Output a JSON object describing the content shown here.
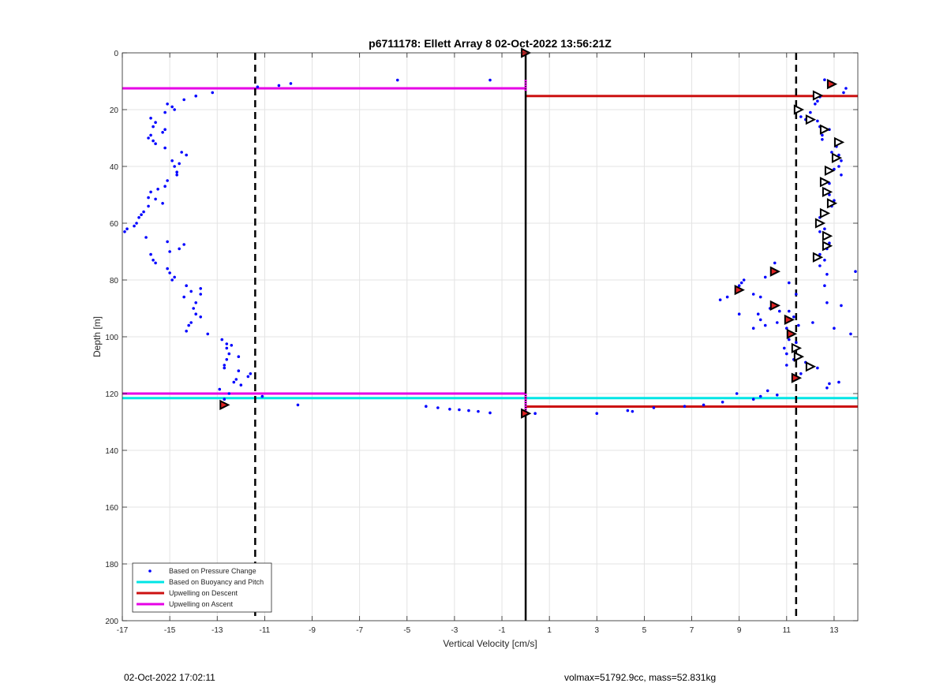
{
  "chart_data": {
    "type": "scatter",
    "title": "p6711178: Ellett Array 8 02-Oct-2022 13:56:21Z",
    "xlabel": "Vertical Velocity [cm/s]",
    "ylabel": "Depth [m]",
    "xlim": [
      -17,
      14
    ],
    "ylim": [
      0,
      200
    ],
    "y_reversed": true,
    "grid": true,
    "x_ticks": [
      -17,
      -15,
      -13,
      -11,
      -9,
      -7,
      -5,
      -3,
      -1,
      1,
      3,
      5,
      7,
      9,
      11,
      13
    ],
    "x_tick_labels": [
      "-17",
      "-15",
      "-13",
      "-11",
      "-9",
      "-7",
      "-5",
      "-3",
      "-1",
      "1",
      "3",
      "5",
      "7",
      "9",
      "11",
      "13"
    ],
    "y_ticks": [
      0,
      20,
      40,
      60,
      80,
      100,
      120,
      140,
      160,
      180,
      200
    ],
    "y_tick_labels": [
      "0",
      "20",
      "40",
      "60",
      "80",
      "100",
      "120",
      "140",
      "160",
      "180",
      "200"
    ],
    "legend_position": "bottom-left",
    "legend": [
      {
        "label": "Based on Pressure Change",
        "kind": "dot",
        "color": "#0000ff"
      },
      {
        "label": "Based on Buoyancy and Pitch",
        "kind": "line",
        "color": "#00e5e5"
      },
      {
        "label": "Upwelling on Descent",
        "kind": "line",
        "color": "#cc1111"
      },
      {
        "label": "Upwelling on Ascent",
        "kind": "line",
        "color": "#e600e6"
      }
    ],
    "colors": {
      "pressure": "#0000ff",
      "buoyancy": "#00e5e5",
      "descent": "#cc1111",
      "ascent": "#e600e6",
      "zero_line": "#000000",
      "dashed": "#000000",
      "marker_fill": "#dd2222"
    },
    "vertical_lines": [
      {
        "x": 0,
        "style": "solid"
      },
      {
        "x": -11.4,
        "style": "dashed"
      },
      {
        "x": 11.4,
        "style": "dashed"
      }
    ],
    "horizontal_segments": [
      {
        "series": "ascent",
        "y": 12.5,
        "x0": -17,
        "x1": 0
      },
      {
        "series": "descent",
        "y": 15.2,
        "x0": 0,
        "x1": 14
      },
      {
        "series": "ascent",
        "y": 120.0,
        "x0": -17,
        "x1": 0
      },
      {
        "series": "buoyancy",
        "y": 121.6,
        "x0": -17,
        "x1": 14
      },
      {
        "series": "descent",
        "y": 124.6,
        "x0": 0,
        "x1": 14
      }
    ],
    "ascent_bar": {
      "x": 0,
      "y0": 9.5,
      "y1": 13.5
    },
    "ascent_bar_bottom": {
      "x": 0,
      "y0": 120.0,
      "y1": 126.5
    },
    "pressure_points": [
      [
        -15.1,
        18
      ],
      [
        -14.9,
        19
      ],
      [
        -15.2,
        21
      ],
      [
        -14.8,
        20
      ],
      [
        -14.4,
        16.5
      ],
      [
        -13.9,
        15.2
      ],
      [
        -13.2,
        14
      ],
      [
        -15.8,
        23
      ],
      [
        -15.6,
        24.5
      ],
      [
        -15.7,
        26
      ],
      [
        -15.2,
        27
      ],
      [
        -15.3,
        28
      ],
      [
        -15.8,
        29
      ],
      [
        -15.9,
        30
      ],
      [
        -15.7,
        31
      ],
      [
        -15.6,
        32
      ],
      [
        -15.2,
        33.5
      ],
      [
        -14.5,
        35
      ],
      [
        -14.3,
        36
      ],
      [
        -14.9,
        38
      ],
      [
        -14.6,
        39
      ],
      [
        -14.8,
        40
      ],
      [
        -14.7,
        42
      ],
      [
        -14.7,
        43
      ],
      [
        -15.1,
        45
      ],
      [
        -15.2,
        47
      ],
      [
        -15.5,
        48
      ],
      [
        -15.8,
        49
      ],
      [
        -15.9,
        51
      ],
      [
        -15.6,
        51.5
      ],
      [
        -15.3,
        53
      ],
      [
        -15.9,
        54
      ],
      [
        -16.1,
        56
      ],
      [
        -16.2,
        57
      ],
      [
        -16.3,
        58
      ],
      [
        -16.4,
        60
      ],
      [
        -16.5,
        61
      ],
      [
        -16.8,
        62
      ],
      [
        -16.9,
        63
      ],
      [
        -16.0,
        65
      ],
      [
        -15.1,
        66.5
      ],
      [
        -14.4,
        67.5
      ],
      [
        -14.6,
        69
      ],
      [
        -15.0,
        70
      ],
      [
        -15.8,
        71
      ],
      [
        -15.7,
        73
      ],
      [
        -15.6,
        74
      ],
      [
        -15.1,
        76
      ],
      [
        -15.0,
        77.5
      ],
      [
        -14.8,
        79
      ],
      [
        -14.9,
        80
      ],
      [
        -14.3,
        82
      ],
      [
        -14.1,
        84
      ],
      [
        -13.7,
        83
      ],
      [
        -13.7,
        85
      ],
      [
        -14.4,
        86
      ],
      [
        -13.9,
        88
      ],
      [
        -14.0,
        90
      ],
      [
        -13.9,
        92
      ],
      [
        -13.7,
        93
      ],
      [
        -14.1,
        95
      ],
      [
        -14.2,
        96
      ],
      [
        -14.3,
        98
      ],
      [
        -13.4,
        99
      ],
      [
        -12.8,
        101
      ],
      [
        -12.6,
        102.5
      ],
      [
        -12.4,
        103
      ],
      [
        -12.6,
        104
      ],
      [
        -12.5,
        106
      ],
      [
        -12.1,
        107
      ],
      [
        -12.6,
        108
      ],
      [
        -12.7,
        110
      ],
      [
        -12.7,
        111
      ],
      [
        -12.1,
        112
      ],
      [
        -11.6,
        113
      ],
      [
        -11.7,
        114
      ],
      [
        -12.2,
        115
      ],
      [
        -12.3,
        116
      ],
      [
        -12.0,
        117
      ],
      [
        -12.9,
        118.5
      ],
      [
        -12.5,
        120
      ],
      [
        -12.7,
        122
      ],
      [
        -11.1,
        121
      ],
      [
        -9.6,
        124
      ],
      [
        -11.3,
        12
      ],
      [
        -10.4,
        11.5
      ],
      [
        -9.9,
        10.8
      ],
      [
        -5.4,
        9.6
      ],
      [
        -1.5,
        9.6
      ],
      [
        -4.2,
        124.5
      ],
      [
        -3.7,
        125
      ],
      [
        -3.2,
        125.5
      ],
      [
        -2.8,
        125.7
      ],
      [
        -2.4,
        126
      ],
      [
        -2.0,
        126.3
      ],
      [
        -1.5,
        126.8
      ],
      [
        0.4,
        127
      ],
      [
        3.0,
        127
      ],
      [
        4.3,
        126
      ],
      [
        4.5,
        126.3
      ],
      [
        5.4,
        125
      ],
      [
        6.7,
        124.5
      ],
      [
        7.5,
        124
      ],
      [
        8.3,
        123
      ],
      [
        8.9,
        120
      ],
      [
        9.6,
        122
      ],
      [
        9.9,
        121
      ],
      [
        10.2,
        119
      ],
      [
        10.6,
        120.5
      ],
      [
        12.6,
        9.5
      ],
      [
        12.9,
        10.5
      ],
      [
        13.5,
        12.5
      ],
      [
        13.4,
        14
      ],
      [
        12.4,
        15.5
      ],
      [
        12.3,
        17
      ],
      [
        12.2,
        18
      ],
      [
        12.0,
        21
      ],
      [
        11.6,
        22.5
      ],
      [
        11.8,
        23.5
      ],
      [
        12.3,
        24
      ],
      [
        12.4,
        26
      ],
      [
        12.8,
        27
      ],
      [
        12.5,
        29
      ],
      [
        12.5,
        30.5
      ],
      [
        13.1,
        32
      ],
      [
        13.1,
        33
      ],
      [
        12.9,
        35
      ],
      [
        13.2,
        36
      ],
      [
        13.3,
        38
      ],
      [
        13.2,
        40
      ],
      [
        13.0,
        41
      ],
      [
        13.3,
        43
      ],
      [
        12.6,
        45
      ],
      [
        12.8,
        46
      ],
      [
        12.6,
        48
      ],
      [
        12.8,
        50
      ],
      [
        13.0,
        52
      ],
      [
        12.9,
        54
      ],
      [
        12.6,
        56
      ],
      [
        12.4,
        58
      ],
      [
        12.5,
        60
      ],
      [
        12.6,
        62
      ],
      [
        12.4,
        63
      ],
      [
        12.6,
        65
      ],
      [
        12.8,
        67
      ],
      [
        12.7,
        69
      ],
      [
        12.4,
        71
      ],
      [
        12.6,
        73
      ],
      [
        12.4,
        75
      ],
      [
        12.7,
        78
      ],
      [
        13.9,
        77
      ],
      [
        10.5,
        74
      ],
      [
        10.1,
        79
      ],
      [
        9.2,
        80
      ],
      [
        9.1,
        81
      ],
      [
        9.0,
        82
      ],
      [
        11.1,
        81
      ],
      [
        12.6,
        82
      ],
      [
        8.5,
        86
      ],
      [
        8.2,
        87
      ],
      [
        9.6,
        85
      ],
      [
        9.9,
        86
      ],
      [
        11.4,
        85
      ],
      [
        12.7,
        88
      ],
      [
        13.3,
        89
      ],
      [
        9.0,
        92
      ],
      [
        9.8,
        92
      ],
      [
        10.3,
        90
      ],
      [
        10.7,
        91
      ],
      [
        11.1,
        91
      ],
      [
        11.3,
        93
      ],
      [
        10.6,
        95
      ],
      [
        10.1,
        96
      ],
      [
        9.6,
        97
      ],
      [
        9.9,
        94
      ],
      [
        11.0,
        97
      ],
      [
        11.5,
        96
      ],
      [
        12.1,
        95
      ],
      [
        13.0,
        97
      ],
      [
        13.7,
        99
      ],
      [
        11.1,
        101
      ],
      [
        10.9,
        104
      ],
      [
        11.4,
        102
      ],
      [
        11.0,
        106
      ],
      [
        11.3,
        108
      ],
      [
        11.0,
        110
      ],
      [
        11.8,
        109
      ],
      [
        12.3,
        111
      ],
      [
        11.6,
        113
      ],
      [
        12.7,
        118
      ],
      [
        13.2,
        116
      ],
      [
        12.8,
        116.5
      ]
    ],
    "triangle_markers": [
      [
        -12.7,
        124,
        "filled"
      ],
      [
        0,
        0,
        "filled"
      ],
      [
        0,
        127,
        "filled"
      ],
      [
        12.9,
        11,
        "filled"
      ],
      [
        12.3,
        15,
        "open"
      ],
      [
        11.5,
        20,
        "open"
      ],
      [
        12.0,
        23.5,
        "open"
      ],
      [
        12.6,
        27,
        "open"
      ],
      [
        13.2,
        31.5,
        "open"
      ],
      [
        13.1,
        37,
        "open"
      ],
      [
        12.8,
        41.5,
        "open"
      ],
      [
        12.6,
        45.5,
        "open"
      ],
      [
        12.7,
        49,
        "open"
      ],
      [
        12.9,
        53,
        "open"
      ],
      [
        12.6,
        56.5,
        "open"
      ],
      [
        12.4,
        60,
        "open"
      ],
      [
        12.7,
        64.5,
        "open"
      ],
      [
        12.7,
        68,
        "open"
      ],
      [
        12.3,
        72,
        "open"
      ],
      [
        10.5,
        77,
        "filled"
      ],
      [
        9.0,
        83.5,
        "filled"
      ],
      [
        10.5,
        89,
        "filled"
      ],
      [
        11.1,
        94,
        "filled"
      ],
      [
        11.2,
        99,
        "filled"
      ],
      [
        11.4,
        104,
        "open"
      ],
      [
        11.5,
        107,
        "open"
      ],
      [
        12.0,
        110.5,
        "open"
      ],
      [
        11.4,
        114.5,
        "filled"
      ]
    ]
  },
  "footer": {
    "left": "02-Oct-2022 17:02:11",
    "right": "volmax=51792.9cc, mass=52.831kg"
  }
}
